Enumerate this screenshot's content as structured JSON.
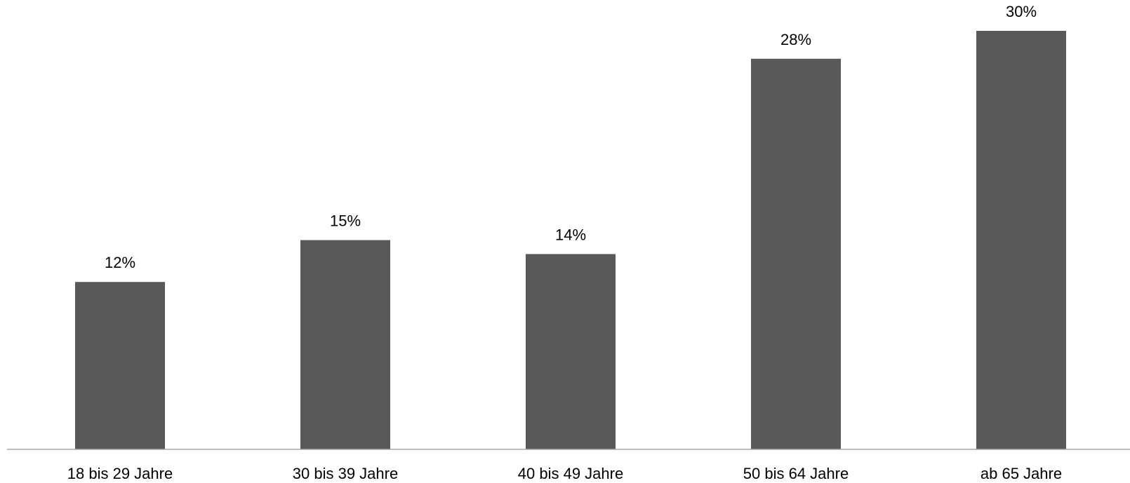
{
  "chart_data": {
    "type": "bar",
    "title": "",
    "xlabel": "",
    "ylabel": "",
    "categories": [
      "18 bis 29 Jahre",
      "30 bis 39 Jahre",
      "40 bis 49 Jahre",
      "50 bis 64 Jahre",
      "ab 65 Jahre"
    ],
    "values": [
      12,
      15,
      14,
      28,
      30
    ],
    "data_labels": [
      "12%",
      "15%",
      "14%",
      "28%",
      "30%"
    ],
    "ylim": [
      0,
      31
    ],
    "y_axis_visible": false,
    "grid": false,
    "legend": "none",
    "bar_color": "#595959",
    "axis_color": "#a6a6a6"
  }
}
